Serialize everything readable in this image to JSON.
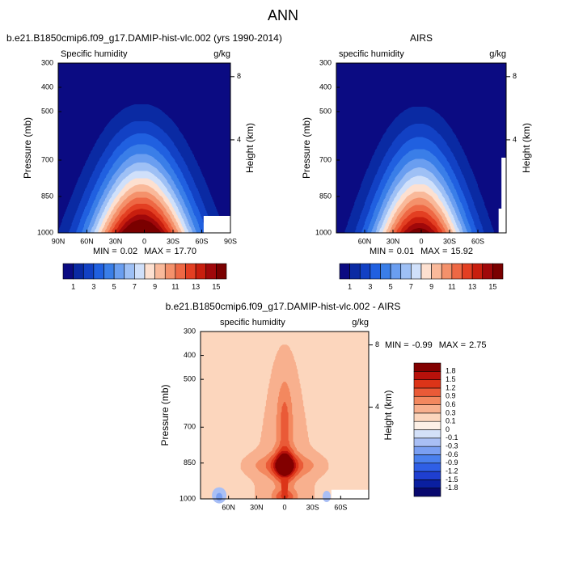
{
  "title": "ANN",
  "chart_data": [
    {
      "type": "contour",
      "title": "b.e21.B1850cmip6.f09_g17.DAMIP-hist-vlc.002 (yrs 1990-2014)",
      "variable": "Specific humidity",
      "units": "g/kg",
      "ylabel": "Pressure (mb)",
      "y2label": "Height (km)",
      "ylim": [
        1000,
        300
      ],
      "yticks": [
        300,
        400,
        500,
        700,
        850,
        1000
      ],
      "y2ticks": [
        8,
        4
      ],
      "xlim": [
        90,
        -90
      ],
      "xticks": [
        {
          "value": 90,
          "label": "90N"
        },
        {
          "value": 60,
          "label": "60N"
        },
        {
          "value": 30,
          "label": "30N"
        },
        0,
        {
          "value": -30,
          "label": "30S"
        },
        {
          "value": -60,
          "label": "60S"
        },
        {
          "value": -90,
          "label": "90S"
        }
      ],
      "min_label": "MIN =",
      "min": 0.02,
      "max_label": "MAX =",
      "max": {
        "value": 17.7,
        "label": "17.70"
      },
      "levels": [
        1,
        2,
        3,
        4,
        5,
        6,
        7,
        8,
        9,
        10,
        11,
        12,
        13,
        14,
        15
      ],
      "colorbar_ticks": [
        1,
        3,
        5,
        7,
        9,
        11,
        13,
        15
      ],
      "colors": [
        "#0b0b82",
        "#0a2aa3",
        "#1241c4",
        "#2060e0",
        "#3a7ee8",
        "#6a9ef0",
        "#9ec0f5",
        "#d0e0fa",
        "#fde0d0",
        "#f9b99a",
        "#f4916b",
        "#ee6844",
        "#e33f22",
        "#c81e0e",
        "#a0080a",
        "#7a0000"
      ]
    },
    {
      "type": "contour",
      "title": "AIRS",
      "variable": "specific humidity",
      "units": "g/kg",
      "ylabel": "Pressure (mb)",
      "y2label": "Height (km)",
      "ylim": [
        1000,
        300
      ],
      "yticks": [
        300,
        400,
        500,
        700,
        850,
        1000
      ],
      "y2ticks": [
        8,
        4
      ],
      "xlim": [
        90,
        -90
      ],
      "xticks": [
        {
          "value": 60,
          "label": "60N"
        },
        {
          "value": 30,
          "label": "30N"
        },
        0,
        {
          "value": -30,
          "label": "30S"
        },
        {
          "value": -60,
          "label": "60S"
        }
      ],
      "min_label": "MIN =",
      "min": 0.01,
      "max_label": "MAX =",
      "max": 15.92,
      "levels": [
        1,
        2,
        3,
        4,
        5,
        6,
        7,
        8,
        9,
        10,
        11,
        12,
        13,
        14,
        15
      ],
      "colorbar_ticks": [
        1,
        3,
        5,
        7,
        9,
        11,
        13,
        15
      ],
      "colors": [
        "#0b0b82",
        "#0a2aa3",
        "#1241c4",
        "#2060e0",
        "#3a7ee8",
        "#6a9ef0",
        "#9ec0f5",
        "#d0e0fa",
        "#fde0d0",
        "#f9b99a",
        "#f4916b",
        "#ee6844",
        "#e33f22",
        "#c81e0e",
        "#a0080a",
        "#7a0000"
      ]
    },
    {
      "type": "contour",
      "title": "b.e21.B1850cmip6.f09_g17.DAMIP-hist-vlc.002 - AIRS",
      "variable": "specific humidity",
      "units": "g/kg",
      "ylabel": "Pressure (mb)",
      "y2label": "Height (km)",
      "ylim": [
        1000,
        300
      ],
      "yticks": [
        300,
        400,
        500,
        700,
        850,
        1000
      ],
      "y2ticks": [
        8,
        4
      ],
      "xlim": [
        90,
        -90
      ],
      "xticks": [
        {
          "value": 60,
          "label": "60N"
        },
        {
          "value": 30,
          "label": "30N"
        },
        0,
        {
          "value": -30,
          "label": "30S"
        },
        {
          "value": -60,
          "label": "60S"
        }
      ],
      "min_label": "MIN =",
      "min": -0.99,
      "max_label": "MAX =",
      "max": 2.75,
      "levels": [
        -1.8,
        -1.5,
        -1.2,
        -0.9,
        -0.6,
        -0.3,
        -0.1,
        0,
        0.1,
        0.3,
        0.6,
        0.9,
        1.2,
        1.5,
        1.8
      ],
      "colors": [
        "#08086e",
        "#0a1fa0",
        "#1f3fd0",
        "#2f5fe6",
        "#4a80ee",
        "#7a9ff2",
        "#a9bff5",
        "#d3e0f8",
        "#fdf0e6",
        "#fcd6bd",
        "#f8b08e",
        "#f3885f",
        "#ea5a37",
        "#dc3418",
        "#b8110b",
        "#820000"
      ]
    }
  ]
}
